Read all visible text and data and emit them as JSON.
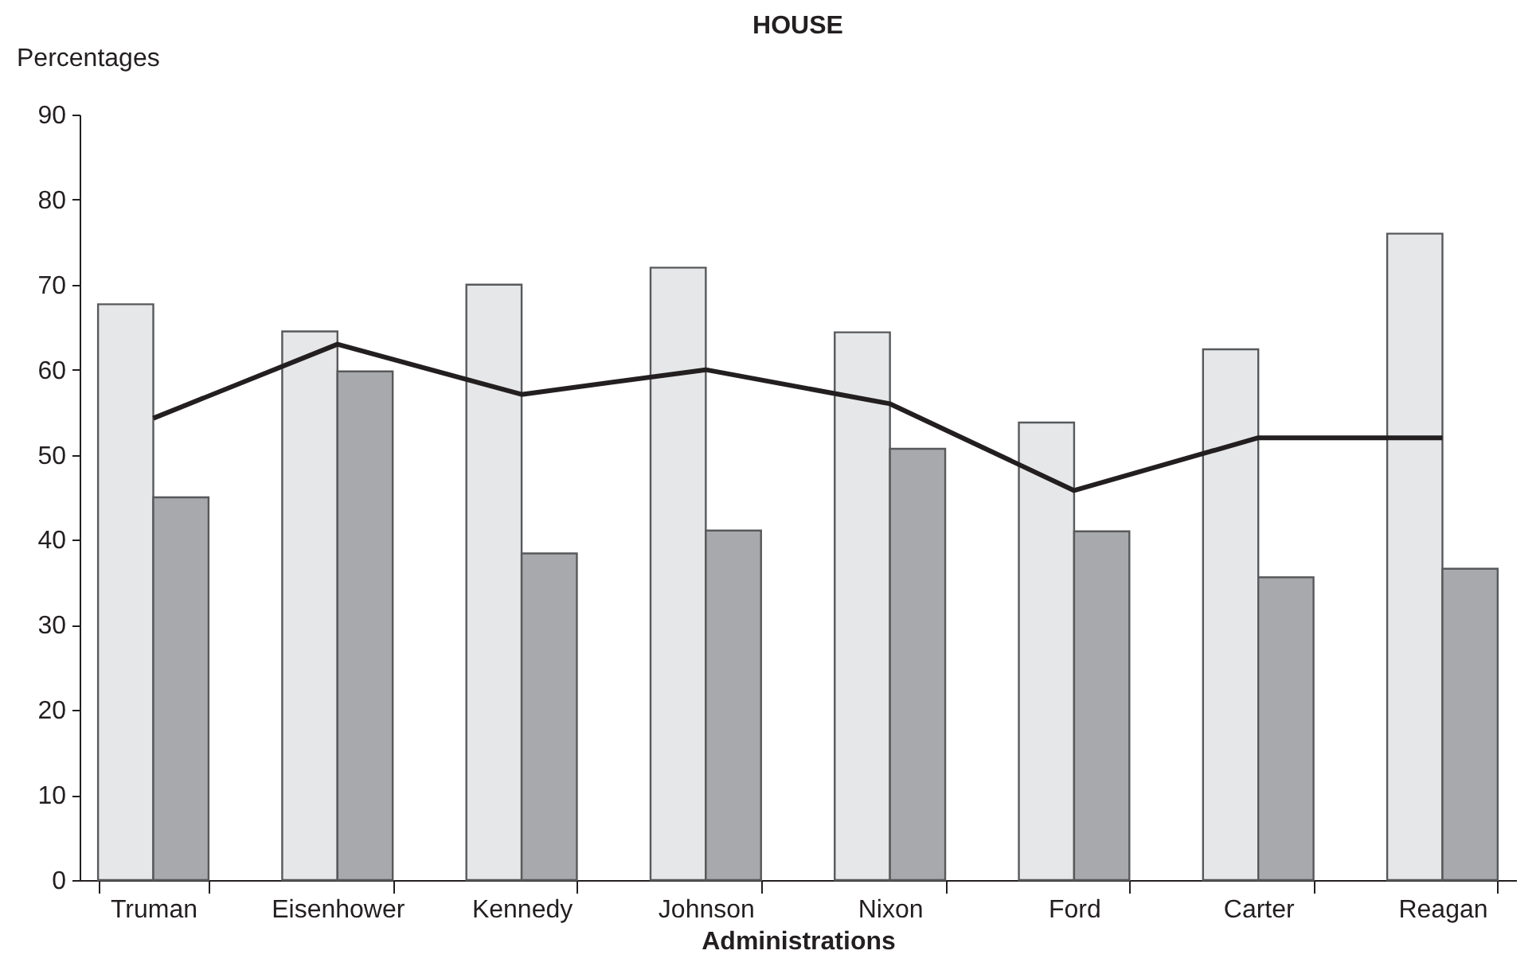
{
  "chart_data": {
    "type": "bar",
    "title": "HOUSE",
    "xlabel": "Administrations",
    "ylabel": "Percentages",
    "categories": [
      "Truman",
      "Eisenhower",
      "Kennedy",
      "Johnson",
      "Nixon",
      "Ford",
      "Carter",
      "Reagan"
    ],
    "series": [
      {
        "color": "#e6e7e8",
        "values": [
          67.7,
          64.5,
          70,
          72,
          64.4,
          53.8,
          62.4,
          76
        ]
      },
      {
        "color": "#a7a9ac",
        "values": [
          45,
          59.8,
          38.4,
          41.1,
          50.7,
          41,
          35.6,
          36.6
        ]
      },
      {
        "type": "line",
        "color": "#231f20",
        "values": [
          54.3,
          63,
          57.1,
          60,
          56,
          45.8,
          52,
          52
        ]
      }
    ],
    "ylim": [
      0,
      90
    ],
    "yticks": [
      0,
      10,
      20,
      30,
      40,
      50,
      60,
      70,
      80,
      90
    ]
  }
}
